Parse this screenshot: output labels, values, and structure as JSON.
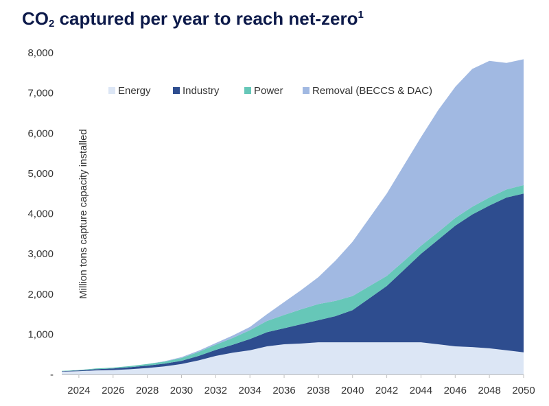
{
  "chart_data": {
    "type": "area",
    "stacked": true,
    "title": {
      "prefix": "CO",
      "subscript": "2",
      "main": " captured per year to reach net-zero",
      "footnote": "1"
    },
    "ylabel": "Million tons capture capacity installed",
    "xlabel": "",
    "ylim": [
      0,
      8000
    ],
    "xlim": [
      2023,
      2050
    ],
    "yticks": [
      0,
      1000,
      2000,
      3000,
      4000,
      5000,
      6000,
      7000,
      8000
    ],
    "ytick_labels": [
      "-",
      "1,000",
      "2,000",
      "3,000",
      "4,000",
      "5,000",
      "6,000",
      "7,000",
      "8,000"
    ],
    "xticks": [
      2024,
      2026,
      2028,
      2030,
      2032,
      2034,
      2036,
      2038,
      2040,
      2042,
      2044,
      2046,
      2048,
      2050
    ],
    "legend_position": "top",
    "x": [
      2023,
      2024,
      2025,
      2026,
      2027,
      2028,
      2029,
      2030,
      2031,
      2032,
      2033,
      2034,
      2035,
      2036,
      2037,
      2038,
      2039,
      2040,
      2041,
      2042,
      2043,
      2044,
      2045,
      2046,
      2047,
      2048,
      2049,
      2050
    ],
    "series": [
      {
        "name": "Energy",
        "color": "#dce6f5",
        "values": [
          70,
          80,
          100,
          110,
          130,
          160,
          200,
          260,
          350,
          460,
          540,
          600,
          700,
          750,
          770,
          800,
          800,
          800,
          800,
          800,
          800,
          800,
          750,
          700,
          680,
          650,
          600,
          550
        ]
      },
      {
        "name": "Industry",
        "color": "#2e4d8f",
        "values": [
          10,
          20,
          30,
          40,
          50,
          60,
          70,
          80,
          110,
          150,
          200,
          280,
          350,
          400,
          480,
          550,
          650,
          800,
          1100,
          1400,
          1800,
          2200,
          2600,
          3000,
          3300,
          3550,
          3800,
          3950
        ]
      },
      {
        "name": "Power",
        "color": "#66c7b8",
        "values": [
          10,
          10,
          20,
          20,
          30,
          40,
          50,
          70,
          100,
          130,
          170,
          220,
          280,
          330,
          370,
          400,
          380,
          350,
          300,
          250,
          220,
          200,
          190,
          190,
          190,
          200,
          200,
          210
        ]
      },
      {
        "name": "Removal (BECCS & DAC)",
        "color": "#a1b9e2",
        "values": [
          0,
          0,
          0,
          0,
          0,
          0,
          10,
          20,
          30,
          40,
          60,
          80,
          170,
          320,
          480,
          670,
          1000,
          1350,
          1700,
          2050,
          2380,
          2700,
          3030,
          3260,
          3430,
          3400,
          3150,
          3130
        ]
      }
    ]
  }
}
